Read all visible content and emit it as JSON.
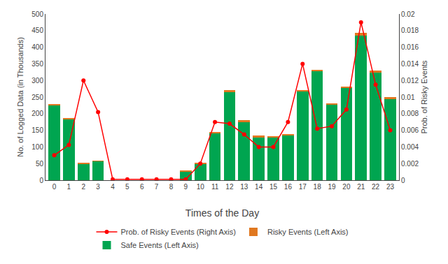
{
  "chart_data": {
    "type": "bar",
    "stacked": true,
    "grid": false,
    "legend": "bottom",
    "x_label": "Times of the Day",
    "y_label": "No. of Logged Data (in Thousands)",
    "y2_label": "Prob. of Risky Events",
    "x": [
      0,
      1,
      2,
      3,
      4,
      5,
      6,
      7,
      8,
      9,
      10,
      11,
      12,
      13,
      14,
      15,
      16,
      17,
      18,
      19,
      20,
      21,
      22,
      23
    ],
    "xlim": [
      -0.6,
      23.6
    ],
    "xticks": [
      0,
      1,
      2,
      3,
      4,
      5,
      6,
      7,
      8,
      9,
      10,
      11,
      12,
      13,
      14,
      15,
      16,
      17,
      18,
      19,
      20,
      21,
      22,
      23
    ],
    "ylim": [
      0,
      500
    ],
    "yticks": [
      0,
      50,
      100,
      150,
      200,
      250,
      300,
      350,
      400,
      450,
      500
    ],
    "y2lim": [
      0,
      0.02
    ],
    "y2ticks": [
      0,
      0.002,
      0.004,
      0.006,
      0.008,
      0.01,
      0.012,
      0.014,
      0.016,
      0.018,
      0.02
    ],
    "series": [
      {
        "name": "Safe Events (Left Axis)",
        "type": "bar",
        "color": "#00A550",
        "values": [
          225,
          183,
          50,
          57,
          0,
          0,
          0,
          0,
          0,
          27,
          50,
          140,
          265,
          175,
          130,
          130,
          135,
          268,
          328,
          228,
          278,
          435,
          323,
          245
        ]
      },
      {
        "name": "Risky Events (Left Axis)",
        "type": "bar",
        "color": "#E07820",
        "values": [
          4,
          3,
          1,
          1,
          0,
          0,
          0,
          0,
          0,
          1,
          3,
          5,
          5,
          5,
          4,
          3,
          3,
          4,
          4,
          4,
          4,
          8,
          6,
          4
        ]
      },
      {
        "name": "Prob. of Risky Events (Right Axis)",
        "type": "line",
        "color": "#FF0000",
        "axis": "y2",
        "marker": "circle",
        "values": [
          0.003,
          0.00425,
          0.012,
          0.0082,
          0.0001,
          0.0001,
          0.0001,
          0.0001,
          0.0001,
          0.0001,
          0.002,
          0.007,
          0.0068,
          0.0055,
          0.004,
          0.004,
          0.007,
          0.014,
          0.0062,
          0.0065,
          0.0085,
          0.019,
          0.0115,
          0.006
        ]
      }
    ]
  }
}
